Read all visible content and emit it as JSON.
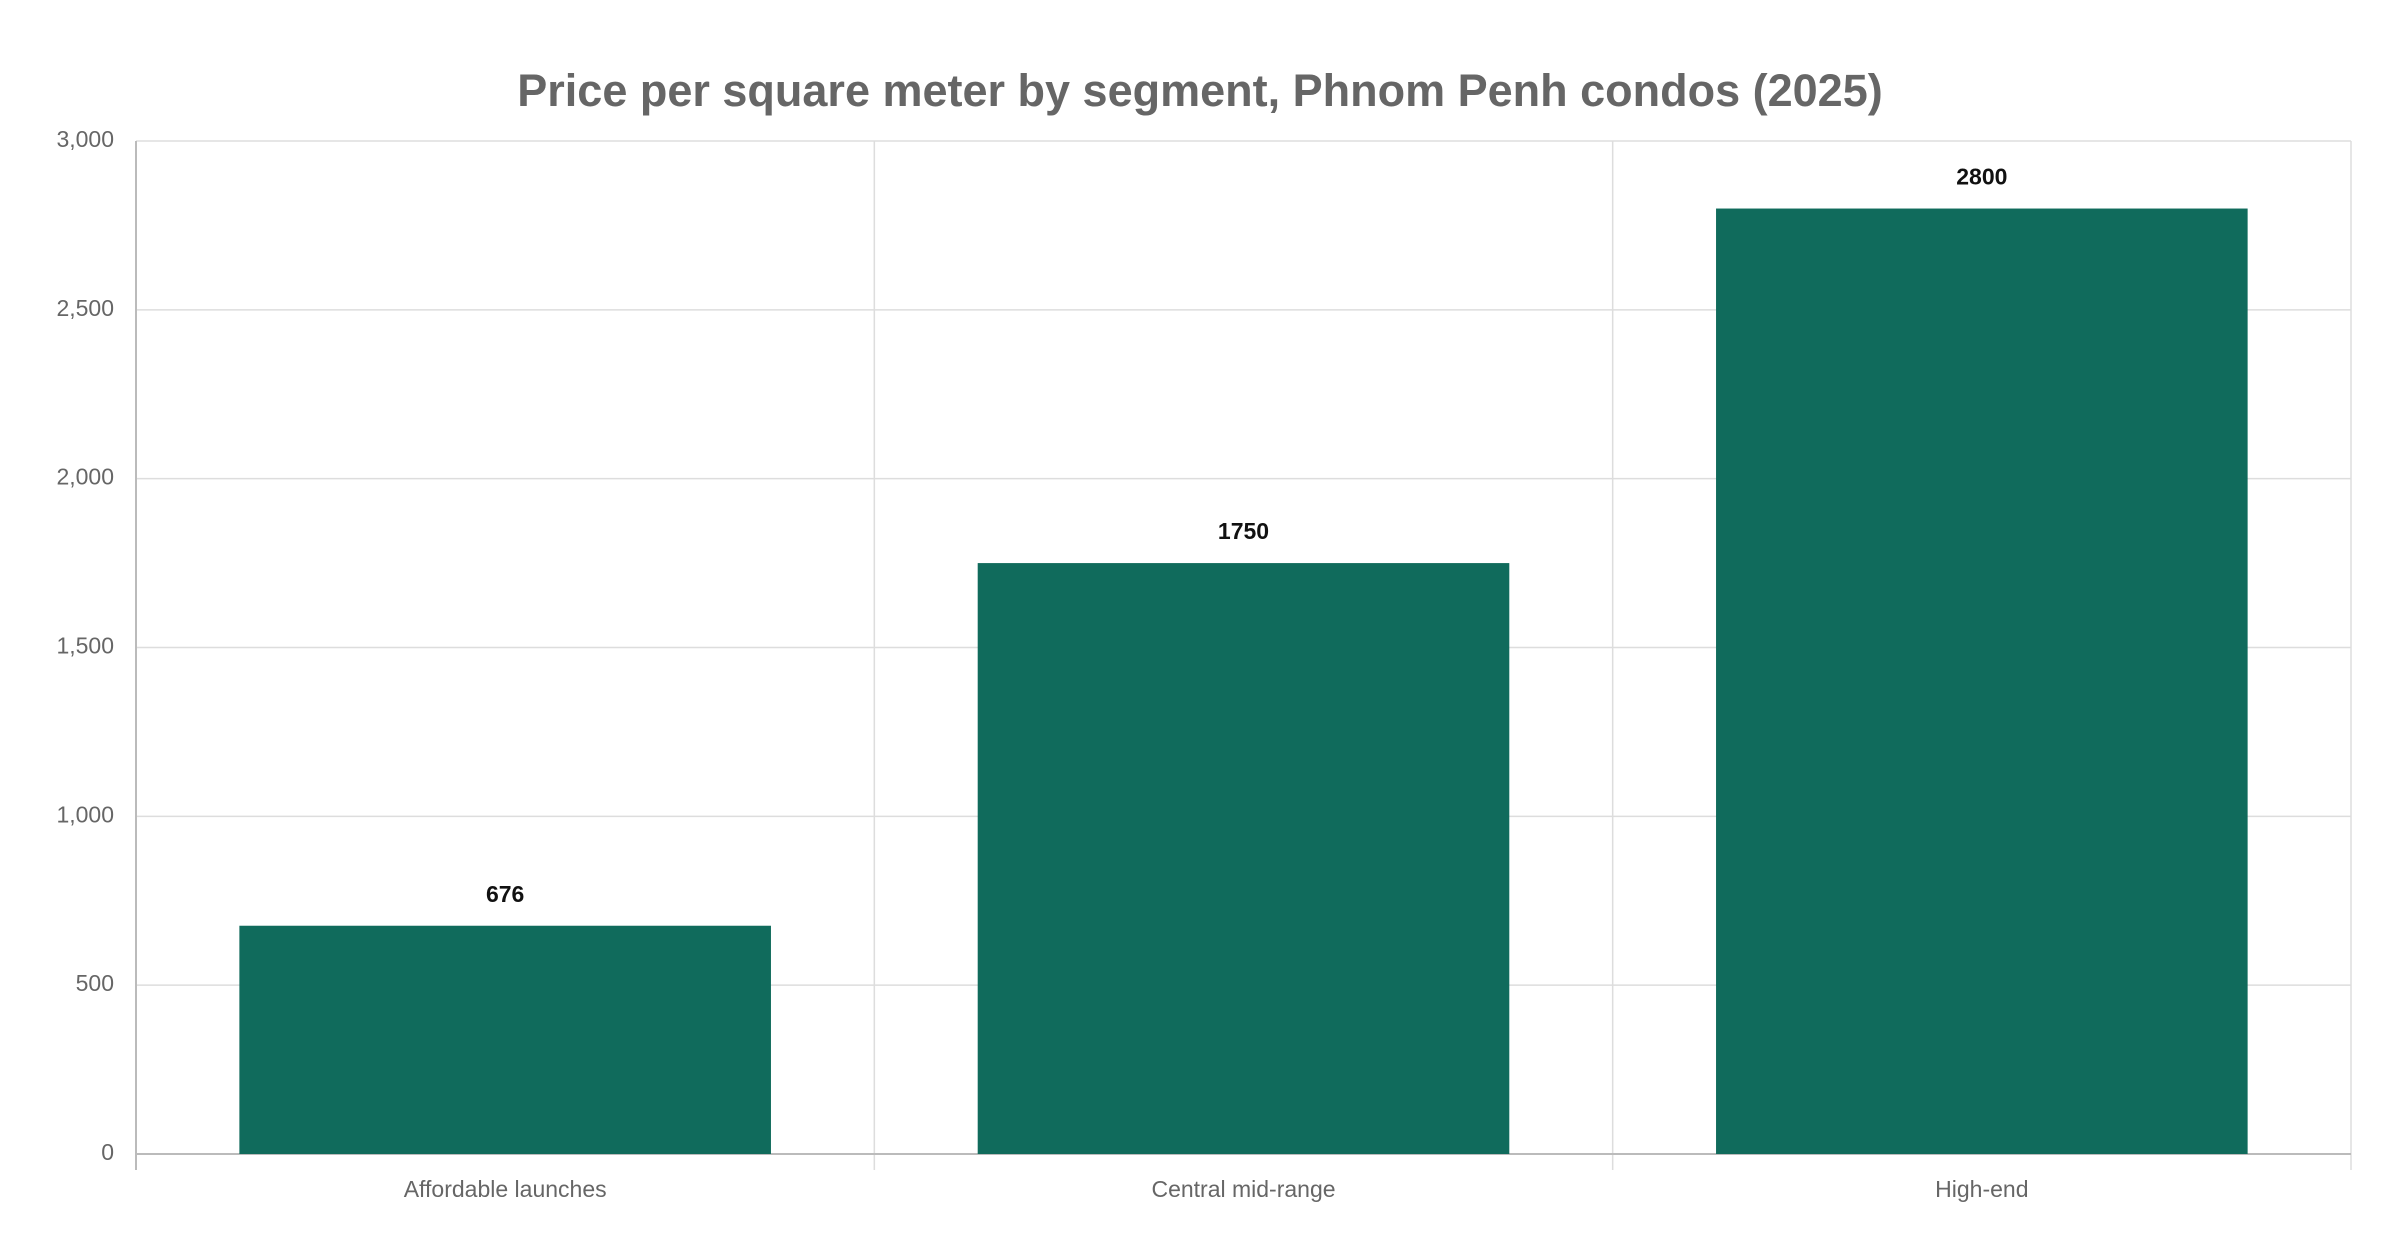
{
  "chart_data": {
    "type": "bar",
    "title": "Price per square meter by segment, Phnom Penh condos (2025)",
    "categories": [
      "Affordable launches",
      "Central mid-range",
      "High-end"
    ],
    "values": [
      676,
      1750,
      2800
    ],
    "color": "#106b5c",
    "ylim": [
      0,
      3000
    ],
    "yticks": [
      0,
      500,
      {
        "value": 1000,
        "label": "1,000"
      },
      {
        "value": 1500,
        "label": "1,500"
      },
      {
        "value": 2000,
        "label": "2,000"
      },
      {
        "value": 2500,
        "label": "2,500"
      },
      {
        "value": 3000,
        "label": "3,000"
      }
    ],
    "grid": true
  }
}
